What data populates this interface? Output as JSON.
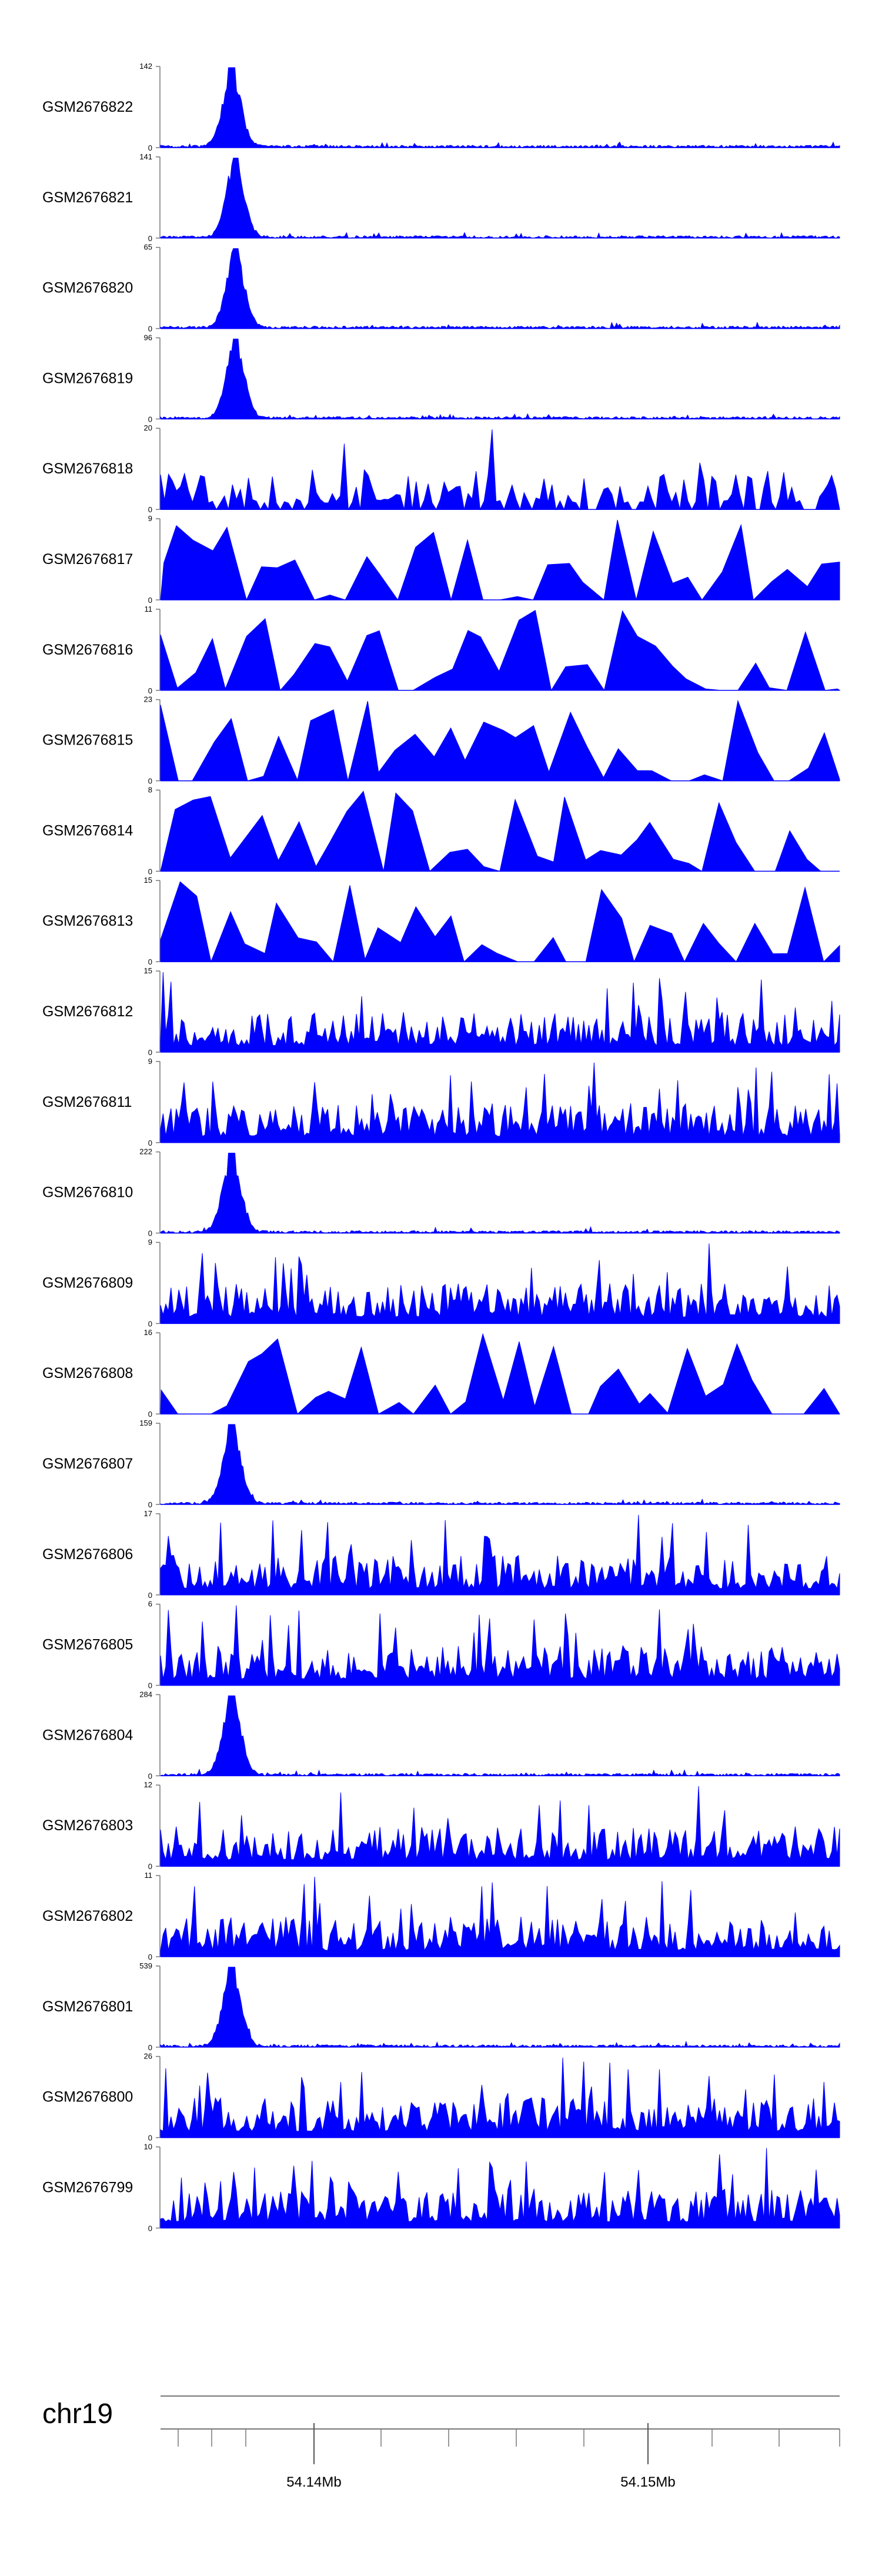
{
  "chart_data": {
    "type": "area",
    "title": "",
    "chromosome": "chr19",
    "xlabel": "",
    "x_tick_labels": [
      "54.14Mb",
      "54.15Mb"
    ],
    "x_tick_values_mb": [
      54.14,
      54.15
    ],
    "xlim_mb": [
      54.1353,
      54.1553
    ],
    "track_color": "#0000ff",
    "tracks": [
      {
        "name": "GSM2676822",
        "ymax": 142,
        "ymax_label": "142",
        "ymin_label": "0",
        "peak_x": 54.1374,
        "peak_shape": "sharp"
      },
      {
        "name": "GSM2676821",
        "ymax": 141,
        "ymax_label": "141",
        "ymin_label": "0",
        "peak_x": 54.1375,
        "peak_shape": "sharp"
      },
      {
        "name": "GSM2676820",
        "ymax": 65,
        "ymax_label": "65",
        "ymin_label": "0",
        "peak_x": 54.1375,
        "peak_shape": "sharp"
      },
      {
        "name": "GSM2676819",
        "ymax": 96,
        "ymax_label": "96",
        "ymin_label": "0",
        "peak_x": 54.1375,
        "peak_shape": "sharp"
      },
      {
        "name": "GSM2676818",
        "ymax": 20,
        "ymax_label": "20",
        "ymin_label": "0",
        "peak_x": null,
        "peak_shape": "spiky"
      },
      {
        "name": "GSM2676817",
        "ymax": 9,
        "ymax_label": "9",
        "ymin_label": "0",
        "peak_x": null,
        "peak_shape": "sparse"
      },
      {
        "name": "GSM2676816",
        "ymax": 11,
        "ymax_label": "11",
        "ymin_label": "0",
        "peak_x": null,
        "peak_shape": "sparse"
      },
      {
        "name": "GSM2676815",
        "ymax": 23,
        "ymax_label": "23",
        "ymin_label": "0",
        "peak_x": null,
        "peak_shape": "sparse"
      },
      {
        "name": "GSM2676814",
        "ymax": 8,
        "ymax_label": "8",
        "ymin_label": "0",
        "peak_x": null,
        "peak_shape": "sparse"
      },
      {
        "name": "GSM2676813",
        "ymax": 15,
        "ymax_label": "15",
        "ymin_label": "0",
        "peak_x": null,
        "peak_shape": "sparse"
      },
      {
        "name": "GSM2676812",
        "ymax": 15,
        "ymax_label": "15",
        "ymin_label": "0",
        "peak_x": null,
        "peak_shape": "dense"
      },
      {
        "name": "GSM2676811",
        "ymax": 9,
        "ymax_label": "9",
        "ymin_label": "0",
        "peak_x": null,
        "peak_shape": "dense"
      },
      {
        "name": "GSM2676810",
        "ymax": 222,
        "ymax_label": "222",
        "ymin_label": "0",
        "peak_x": 54.1374,
        "peak_shape": "sharp"
      },
      {
        "name": "GSM2676809",
        "ymax": 9,
        "ymax_label": "9",
        "ymin_label": "0",
        "peak_x": null,
        "peak_shape": "dense"
      },
      {
        "name": "GSM2676808",
        "ymax": 16,
        "ymax_label": "16",
        "ymin_label": "0",
        "peak_x": null,
        "peak_shape": "sparse"
      },
      {
        "name": "GSM2676807",
        "ymax": 159,
        "ymax_label": "159",
        "ymin_label": "0",
        "peak_x": 54.1374,
        "peak_shape": "sharp"
      },
      {
        "name": "GSM2676806",
        "ymax": 17,
        "ymax_label": "17",
        "ymin_label": "0",
        "peak_x": null,
        "peak_shape": "dense"
      },
      {
        "name": "GSM2676805",
        "ymax": 6,
        "ymax_label": "6",
        "ymin_label": "0",
        "peak_x": null,
        "peak_shape": "dense"
      },
      {
        "name": "GSM2676804",
        "ymax": 284,
        "ymax_label": "284",
        "ymin_label": "0",
        "peak_x": 54.1374,
        "peak_shape": "sharp"
      },
      {
        "name": "GSM2676803",
        "ymax": 12,
        "ymax_label": "12",
        "ymin_label": "0",
        "peak_x": null,
        "peak_shape": "dense"
      },
      {
        "name": "GSM2676802",
        "ymax": 11,
        "ymax_label": "11",
        "ymin_label": "0",
        "peak_x": null,
        "peak_shape": "dense"
      },
      {
        "name": "GSM2676801",
        "ymax": 539,
        "ymax_label": "539",
        "ymin_label": "0",
        "peak_x": 54.1374,
        "peak_shape": "sharp"
      },
      {
        "name": "GSM2676800",
        "ymax": 26,
        "ymax_label": "26",
        "ymin_label": "0",
        "peak_x": null,
        "peak_shape": "dense"
      },
      {
        "name": "GSM2676799",
        "ymax": 10,
        "ymax_label": "10",
        "ymin_label": "0",
        "peak_x": null,
        "peak_shape": "dense"
      }
    ]
  }
}
